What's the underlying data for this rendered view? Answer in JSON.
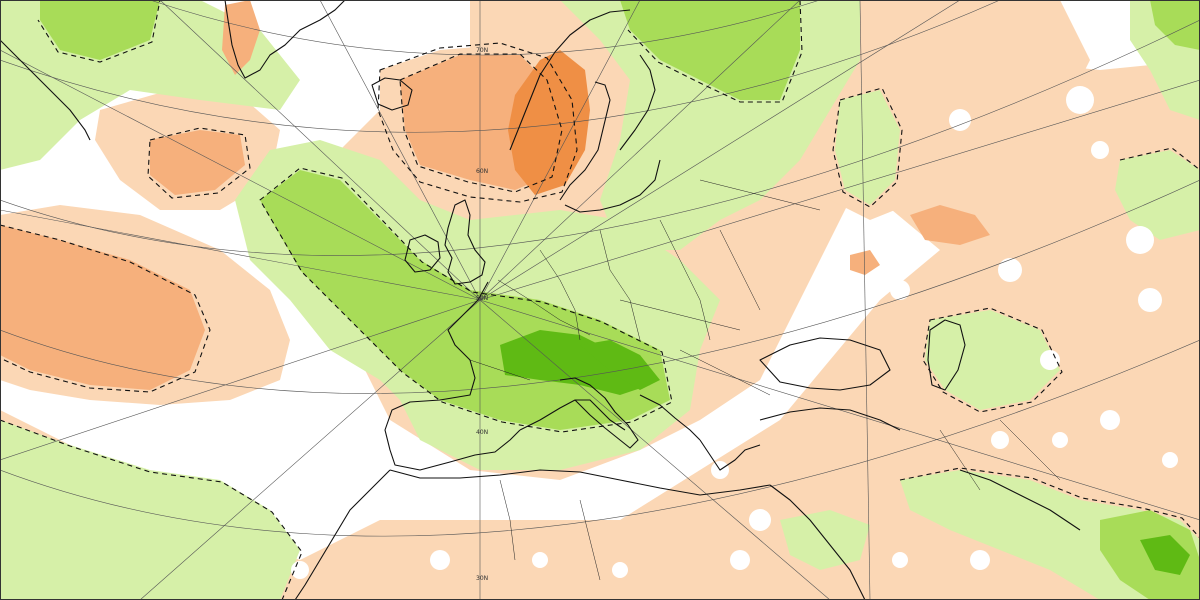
{
  "map": {
    "palette": {
      "green_dark": "#5fba14",
      "green_mid": "#a8dc58",
      "green_light": "#d6f0a8",
      "neutral": "#ffffff",
      "orange_light": "#fbd7b5",
      "orange_mid": "#f6b07c",
      "orange_dark": "#ef8f45",
      "coastline": "#111111",
      "graticule": "#555555",
      "contour": "#111111"
    },
    "latitude_labels": [
      "70N",
      "60N",
      "50N",
      "40N",
      "30N"
    ]
  }
}
